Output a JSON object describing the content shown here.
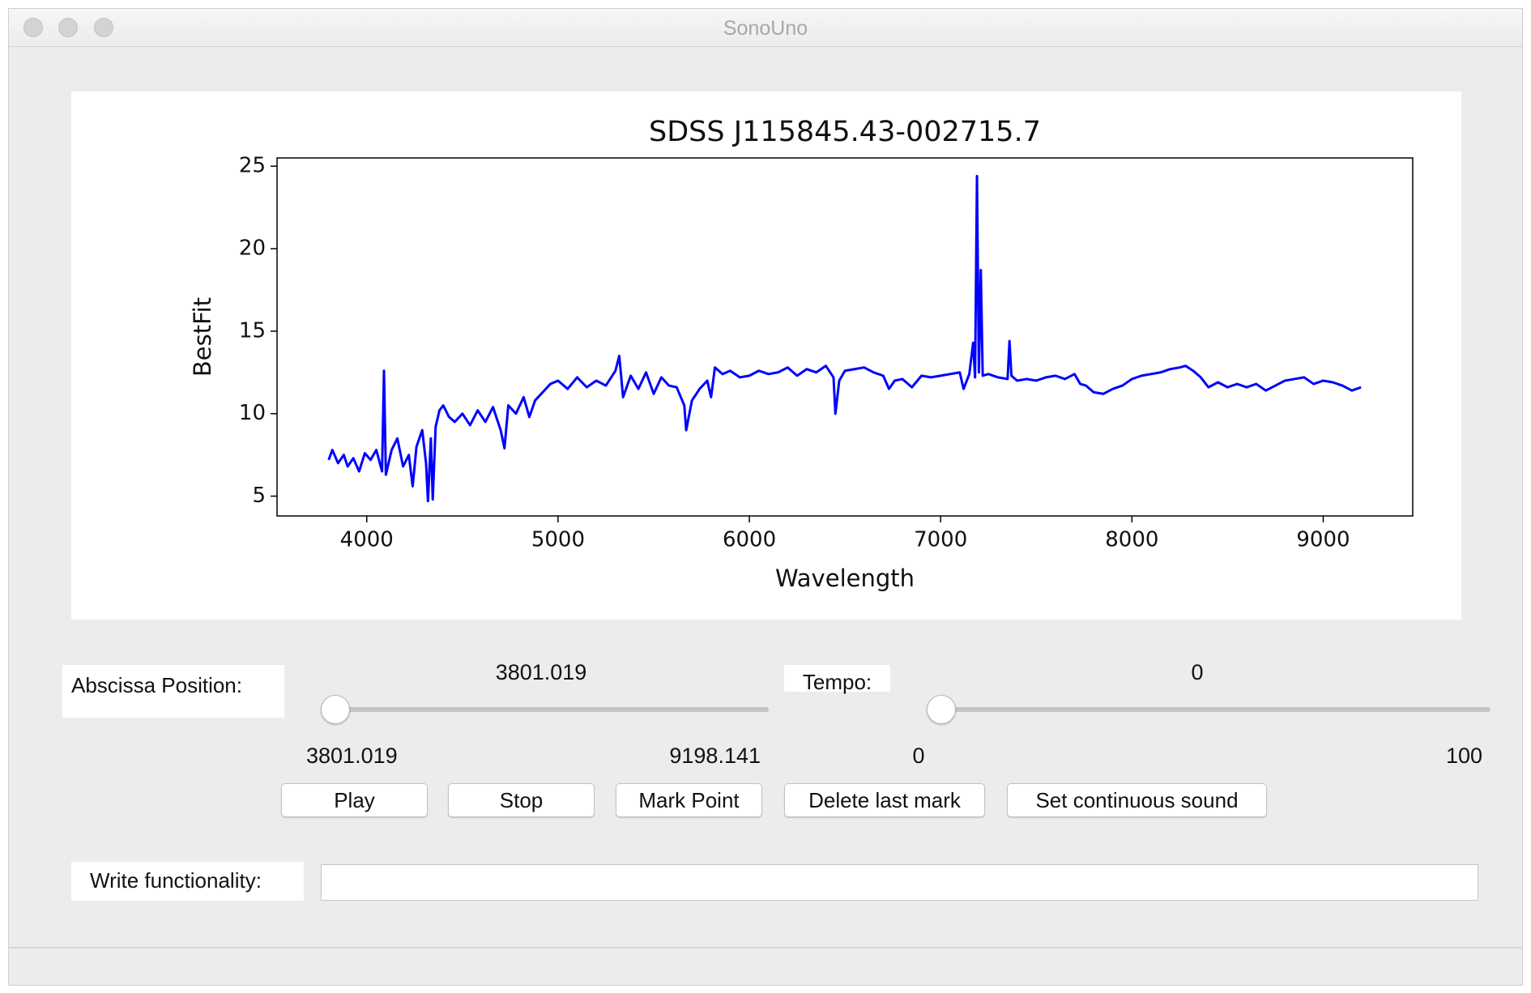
{
  "window": {
    "title": "SonoUno"
  },
  "chart_data": {
    "type": "line",
    "title": "SDSS J115845.43-002715.7",
    "x_label": "Wavelength",
    "y_label": "BestFit",
    "x": [
      3801,
      3820,
      3850,
      3880,
      3900,
      3930,
      3960,
      3990,
      4020,
      4050,
      4080,
      4090,
      4100,
      4130,
      4160,
      4190,
      4220,
      4240,
      4260,
      4290,
      4310,
      4320,
      4335,
      4345,
      4360,
      4380,
      4400,
      4430,
      4460,
      4500,
      4540,
      4580,
      4620,
      4660,
      4700,
      4720,
      4740,
      4780,
      4820,
      4850,
      4880,
      4920,
      4960,
      5000,
      5050,
      5100,
      5150,
      5200,
      5250,
      5300,
      5320,
      5340,
      5380,
      5420,
      5460,
      5500,
      5540,
      5580,
      5620,
      5660,
      5670,
      5700,
      5740,
      5780,
      5800,
      5820,
      5860,
      5900,
      5950,
      6000,
      6050,
      6100,
      6150,
      6200,
      6250,
      6300,
      6350,
      6400,
      6440,
      6450,
      6470,
      6500,
      6550,
      6600,
      6650,
      6700,
      6730,
      6760,
      6800,
      6850,
      6900,
      6950,
      7000,
      7050,
      7100,
      7120,
      7150,
      7170,
      7180,
      7190,
      7200,
      7210,
      7220,
      7250,
      7300,
      7350,
      7360,
      7370,
      7400,
      7450,
      7500,
      7550,
      7600,
      7650,
      7700,
      7730,
      7760,
      7800,
      7850,
      7900,
      7950,
      8000,
      8050,
      8100,
      8150,
      8200,
      8250,
      8280,
      8320,
      8360,
      8400,
      8450,
      8500,
      8550,
      8600,
      8650,
      8700,
      8750,
      8800,
      8850,
      8900,
      8950,
      9000,
      9050,
      9100,
      9150,
      9198
    ],
    "values": [
      7.2,
      7.8,
      7.0,
      7.5,
      6.8,
      7.3,
      6.5,
      7.6,
      7.2,
      7.8,
      6.5,
      12.6,
      6.3,
      7.8,
      8.5,
      6.8,
      7.5,
      5.6,
      8.0,
      9.0,
      7.0,
      4.7,
      8.5,
      4.8,
      9.2,
      10.2,
      10.5,
      9.8,
      9.5,
      10.0,
      9.3,
      10.2,
      9.5,
      10.4,
      9.0,
      7.9,
      10.5,
      10.0,
      11.0,
      9.8,
      10.8,
      11.3,
      11.8,
      12.0,
      11.5,
      12.2,
      11.6,
      12.0,
      11.7,
      12.6,
      13.5,
      11.0,
      12.3,
      11.5,
      12.5,
      11.2,
      12.2,
      11.7,
      11.6,
      10.5,
      9.0,
      10.8,
      11.5,
      12.0,
      11.0,
      12.8,
      12.4,
      12.6,
      12.2,
      12.3,
      12.6,
      12.4,
      12.5,
      12.8,
      12.3,
      12.7,
      12.5,
      12.9,
      12.2,
      10.0,
      12.0,
      12.6,
      12.7,
      12.8,
      12.5,
      12.3,
      11.5,
      12.0,
      12.1,
      11.6,
      12.3,
      12.2,
      12.3,
      12.4,
      12.5,
      11.5,
      12.4,
      14.3,
      12.2,
      24.4,
      12.5,
      18.7,
      12.3,
      12.4,
      12.2,
      12.1,
      14.4,
      12.3,
      12.0,
      12.1,
      12.0,
      12.2,
      12.3,
      12.1,
      12.4,
      11.8,
      11.7,
      11.3,
      11.2,
      11.5,
      11.7,
      12.1,
      12.3,
      12.4,
      12.5,
      12.7,
      12.8,
      12.9,
      12.6,
      12.2,
      11.6,
      11.9,
      11.6,
      11.8,
      11.6,
      11.8,
      11.4,
      11.7,
      12.0,
      12.1,
      12.2,
      11.8,
      12.0,
      11.9,
      11.7,
      11.4,
      11.6
    ],
    "color": "#0000ff",
    "xlim": [
      3531,
      9468
    ],
    "ylim": [
      3.8,
      25.5
    ],
    "xticks": [
      4000,
      5000,
      6000,
      7000,
      8000,
      9000
    ],
    "yticks": [
      5,
      10,
      15,
      20,
      25
    ]
  },
  "controls": {
    "abscissa": {
      "label": "Abscissa Position:",
      "value": 3801.019,
      "min": 3801.019,
      "max": 9198.141
    },
    "tempo": {
      "label": "Tempo:",
      "value": 0,
      "min": 0,
      "max": 100
    },
    "buttons": [
      "Play",
      "Stop",
      "Mark Point",
      "Delete last mark",
      "Set continuous sound"
    ],
    "write": {
      "label": "Write functionality:"
    }
  }
}
